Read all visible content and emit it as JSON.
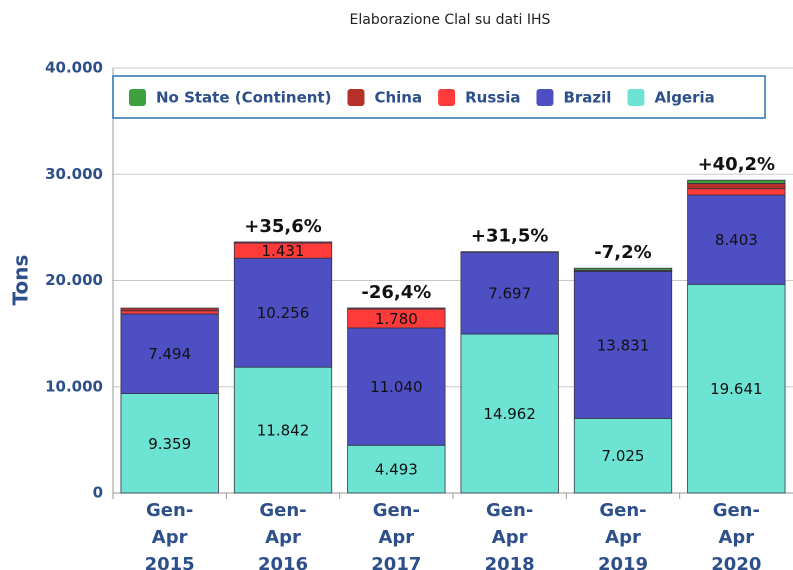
{
  "chart_data": {
    "type": "stacked-bar",
    "subtitle": "Elaborazione Clal su dati IHS",
    "y_label": "Tons",
    "categories": [
      "Gen-Apr 2015",
      "Gen-Apr 2016",
      "Gen-Apr 2017",
      "Gen-Apr 2018",
      "Gen-Apr 2019",
      "Gen-Apr 2020"
    ],
    "annotations": [
      null,
      "+35,6%",
      "-26,4%",
      "+31,5%",
      "-7,2%",
      "+40,2%"
    ],
    "series": [
      {
        "name": "Algeria",
        "color": "#6ce3d3",
        "values": [
          9359,
          11842,
          4493,
          14962,
          7025,
          19641
        ],
        "value_labels": [
          "9.359",
          "11.842",
          "4.493",
          "14.962",
          "7.025",
          "19.641"
        ]
      },
      {
        "name": "Brazil",
        "color": "#4f4fc4",
        "values": [
          7494,
          10256,
          11040,
          7697,
          13831,
          8403
        ],
        "value_labels": [
          "7.494",
          "10.256",
          "11.040",
          "7.697",
          "13.831",
          "8.403"
        ]
      },
      {
        "name": "Russia",
        "color": "#ff3a3a",
        "values": [
          300,
          1431,
          1780,
          0,
          0,
          600
        ],
        "value_labels": [
          null,
          "1.431",
          "1.780",
          null,
          null,
          null
        ]
      },
      {
        "name": "China",
        "color": "#b8302a",
        "values": [
          250,
          100,
          100,
          50,
          100,
          500
        ]
      },
      {
        "name": "No State (Continent)",
        "color": "#3fa040",
        "values": [
          0,
          0,
          0,
          0,
          200,
          300
        ]
      }
    ],
    "ylim": [
      0,
      40000
    ],
    "yticks": [
      {
        "value": 0,
        "label": "0"
      },
      {
        "value": 10000,
        "label": "10.000"
      },
      {
        "value": 20000,
        "label": "20.000"
      },
      {
        "value": 30000,
        "label": "30.000"
      },
      {
        "value": 40000,
        "label": "40.000"
      }
    ],
    "grid": true
  }
}
